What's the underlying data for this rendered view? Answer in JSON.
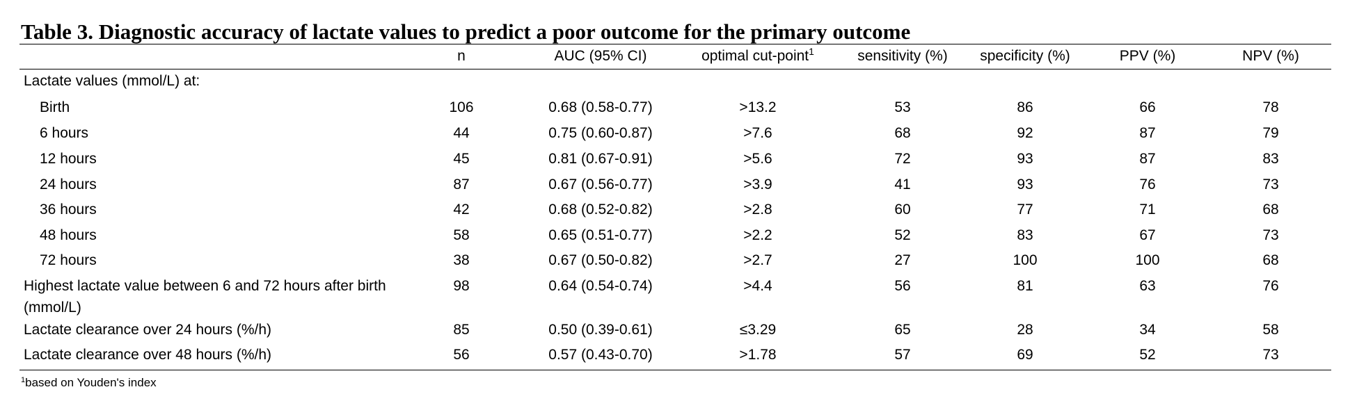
{
  "title": "Table 3. Diagnostic accuracy of lactate values to predict a poor outcome for the primary outcome",
  "columns": [
    "n",
    "AUC (95% CI)",
    {
      "label": "optimal cut-point",
      "note": "1"
    },
    "sensitivity (%)",
    "specificity (%)",
    "PPV (%)",
    "NPV (%)"
  ],
  "group": {
    "label": "Lactate values (mmol/L) at:",
    "rows": [
      {
        "label": "Birth",
        "cells": [
          "106",
          "0.68 (0.58-0.77)",
          ">13.2",
          "53",
          "86",
          "66",
          "78"
        ]
      },
      {
        "label": "6 hours",
        "cells": [
          "44",
          "0.75 (0.60-0.87)",
          ">7.6",
          "68",
          "92",
          "87",
          "79"
        ]
      },
      {
        "label": "12 hours",
        "cells": [
          "45",
          "0.81 (0.67-0.91)",
          ">5.6",
          "72",
          "93",
          "87",
          "83"
        ]
      },
      {
        "label": "24 hours",
        "cells": [
          "87",
          "0.67 (0.56-0.77)",
          ">3.9",
          "41",
          "93",
          "76",
          "73"
        ]
      },
      {
        "label": "36 hours",
        "cells": [
          "42",
          "0.68 (0.52-0.82)",
          ">2.8",
          "60",
          "77",
          "71",
          "68"
        ]
      },
      {
        "label": "48 hours",
        "cells": [
          "58",
          "0.65 (0.51-0.77)",
          ">2.2",
          "52",
          "83",
          "67",
          "73"
        ]
      },
      {
        "label": "72 hours",
        "cells": [
          "38",
          "0.67 (0.50-0.82)",
          ">2.7",
          "27",
          "100",
          "100",
          "68"
        ]
      }
    ]
  },
  "rows": [
    {
      "label": "Highest lactate value between 6 and 72 hours after birth (mmol/L)",
      "cells": [
        "98",
        "0.64 (0.54-0.74)",
        ">4.4",
        "56",
        "81",
        "63",
        "76"
      ]
    },
    {
      "label": "Lactate clearance over 24 hours (%/h)",
      "cells": [
        "85",
        "0.50 (0.39-0.61)",
        "≤3.29",
        "65",
        "28",
        "34",
        "58"
      ]
    },
    {
      "label": "Lactate clearance over 48 hours (%/h)",
      "cells": [
        "56",
        "0.57 (0.43-0.70)",
        ">1.78",
        "57",
        "69",
        "52",
        "73"
      ]
    }
  ],
  "footnote": {
    "marker": "1",
    "text": "based on Youden's index"
  }
}
